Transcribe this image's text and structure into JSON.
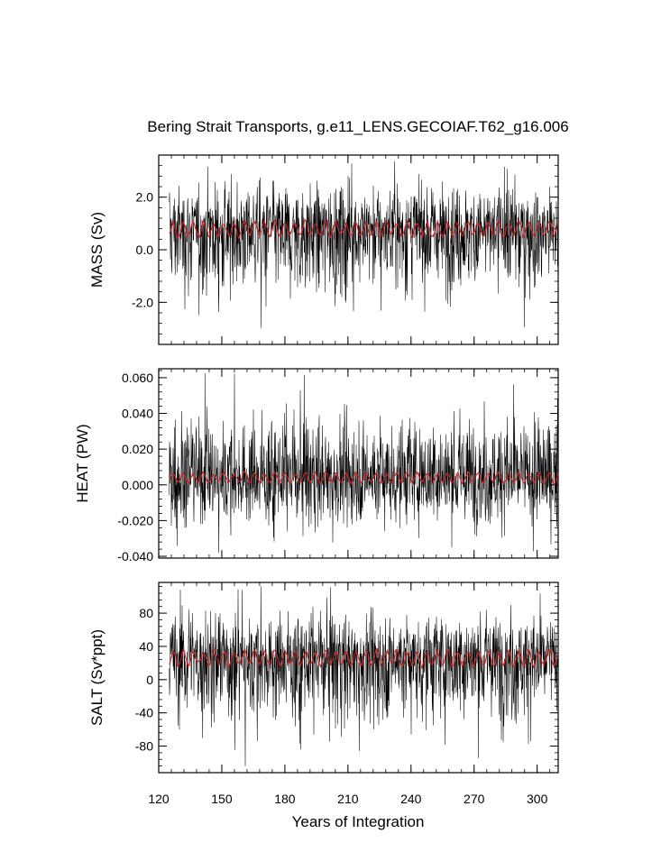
{
  "chart_data": {
    "type": "line",
    "title": "Bering Strait Transports, g.e11_LENS.GECOIAF.T62_g16.006",
    "xlabel": "Years of Integration",
    "xlim": [
      120,
      310
    ],
    "x_ticks": [
      120,
      150,
      180,
      210,
      240,
      270,
      300
    ],
    "x_tick_labels": [
      "120",
      "150",
      "180",
      "210",
      "240",
      "270",
      "300"
    ],
    "grid": false,
    "legend": "none",
    "colors": {
      "monthly": "#000000",
      "annual": "#cc2222"
    },
    "panels": [
      {
        "ylabel": "MASS (Sv)",
        "ylim": [
          -3.6,
          3.6
        ],
        "y_ticks": [
          -2.0,
          0.0,
          2.0
        ],
        "y_tick_labels": [
          "-2.0",
          "0.0",
          "2.0"
        ],
        "x_start": 125,
        "x_end": 310,
        "monthly_mean": 0.8,
        "annual_mean": 0.78,
        "monthly_range": [
          -3.5,
          3.5
        ],
        "annual_range": [
          0.3,
          1.2
        ]
      },
      {
        "ylabel": "HEAT (PW)",
        "ylim": [
          -0.041,
          0.065
        ],
        "y_ticks": [
          -0.04,
          -0.02,
          0.0,
          0.02,
          0.04,
          0.06
        ],
        "y_tick_labels": [
          "-0.040",
          "-0.020",
          "0.000",
          "0.020",
          "0.040",
          "0.060"
        ],
        "x_start": 125,
        "x_end": 310,
        "monthly_mean": 0.004,
        "annual_mean": 0.004,
        "monthly_range": [
          -0.04,
          0.064
        ],
        "annual_range": [
          0.0,
          0.009
        ]
      },
      {
        "ylabel": "SALT (Sv*ppt)",
        "ylim": [
          -112,
          117
        ],
        "y_ticks": [
          -80,
          -40,
          0,
          40,
          80
        ],
        "y_tick_labels": [
          "-80",
          "-40",
          "0",
          "40",
          "80"
        ],
        "x_start": 125,
        "x_end": 310,
        "monthly_mean": 27,
        "annual_mean": 26,
        "monthly_range": [
          -110,
          115
        ],
        "annual_range": [
          10,
          40
        ]
      }
    ]
  }
}
